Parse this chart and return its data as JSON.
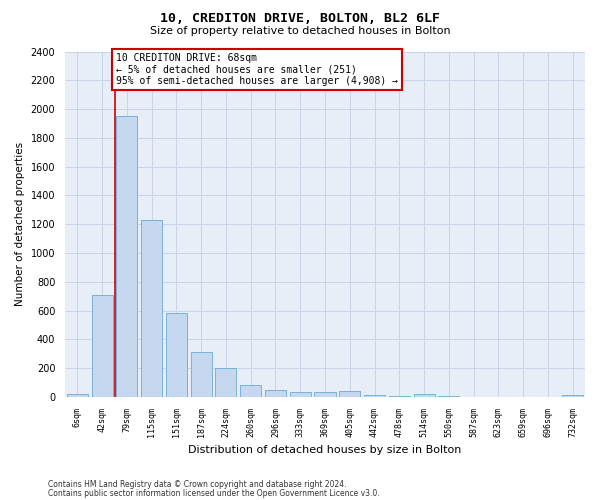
{
  "title1": "10, CREDITON DRIVE, BOLTON, BL2 6LF",
  "title2": "Size of property relative to detached houses in Bolton",
  "xlabel": "Distribution of detached houses by size in Bolton",
  "ylabel": "Number of detached properties",
  "categories": [
    "6sqm",
    "42sqm",
    "79sqm",
    "115sqm",
    "151sqm",
    "187sqm",
    "224sqm",
    "260sqm",
    "296sqm",
    "333sqm",
    "369sqm",
    "405sqm",
    "442sqm",
    "478sqm",
    "514sqm",
    "550sqm",
    "587sqm",
    "623sqm",
    "659sqm",
    "696sqm",
    "732sqm"
  ],
  "values": [
    20,
    710,
    1950,
    1230,
    580,
    310,
    200,
    85,
    50,
    35,
    35,
    40,
    15,
    10,
    18,
    10,
    0,
    0,
    0,
    0,
    15
  ],
  "bar_color": "#c5d8f0",
  "bar_edge_color": "#6aaad4",
  "grid_color": "#c8d4e8",
  "bg_color": "#e8eef8",
  "annotation_box_color": "#cc0000",
  "vline_color": "#cc0000",
  "annotation_title": "10 CREDITON DRIVE: 68sqm",
  "annotation_line1": "← 5% of detached houses are smaller (251)",
  "annotation_line2": "95% of semi-detached houses are larger (4,908) →",
  "ylim": [
    0,
    2400
  ],
  "yticks": [
    0,
    200,
    400,
    600,
    800,
    1000,
    1200,
    1400,
    1600,
    1800,
    2000,
    2200,
    2400
  ],
  "footnote1": "Contains HM Land Registry data © Crown copyright and database right 2024.",
  "footnote2": "Contains public sector information licensed under the Open Government Licence v3.0."
}
